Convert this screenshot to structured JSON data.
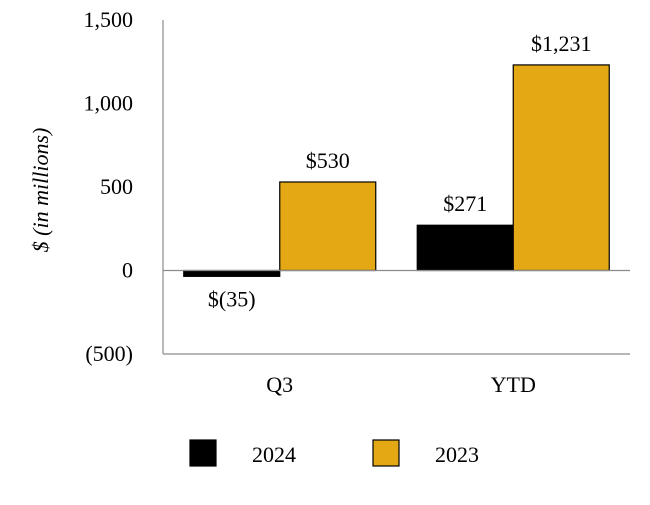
{
  "chart_data": {
    "type": "bar",
    "title": "",
    "xlabel": "",
    "ylabel": "$ (in millions)",
    "categories": [
      "Q3",
      "YTD"
    ],
    "series": [
      {
        "name": "2024",
        "color": "#000000",
        "values": [
          -35,
          271
        ],
        "labels": [
          "$(35)",
          "$271"
        ]
      },
      {
        "name": "2023",
        "color": "#E3A813",
        "values": [
          530,
          1231
        ],
        "labels": [
          "$530",
          "$1,231"
        ]
      }
    ],
    "ylim": [
      -500,
      1500
    ],
    "yticks": [
      -500,
      0,
      500,
      1000,
      1500
    ],
    "ytick_labels": [
      "(500)",
      "0",
      "500",
      "1,000",
      "1,500"
    ],
    "grid": false,
    "legend_position": "bottom-center"
  }
}
